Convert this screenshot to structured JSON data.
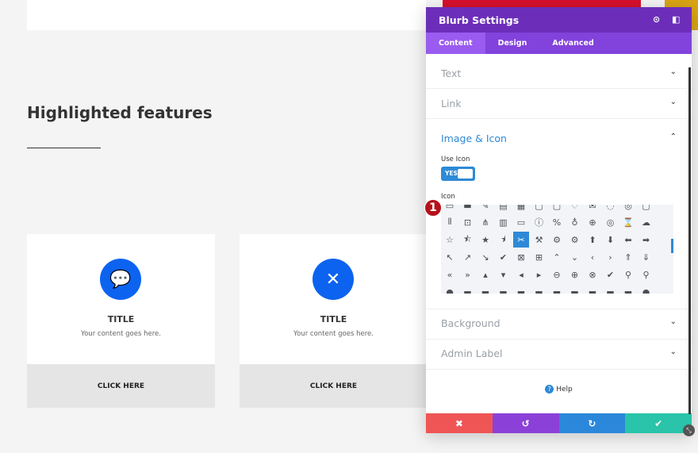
{
  "page": {
    "heading": "Highlighted features",
    "cards": [
      {
        "icon": "chat-bubble-icon",
        "glyph": "💬",
        "title": "TITLE",
        "description": "Your content goes here.",
        "button": "CLICK HERE"
      },
      {
        "icon": "tools-icon",
        "glyph": "✕",
        "title": "TITLE",
        "description": "Your content goes here.",
        "button": "CLICK HERE"
      }
    ]
  },
  "panel": {
    "title": "Blurb Settings",
    "tabs": [
      {
        "label": "Content",
        "active": true
      },
      {
        "label": "Design"
      },
      {
        "label": "Advanced"
      }
    ],
    "sections": {
      "text": "Text",
      "link": "Link",
      "image_icon": "Image & Icon",
      "background": "Background",
      "admin_label": "Admin Label"
    },
    "use_icon_label": "Use Icon",
    "use_icon_value": "YES",
    "icon_label": "Icon",
    "icon_grid": [
      [
        "▭",
        "▬",
        "✎",
        "▤",
        "▦",
        "▢",
        "▢",
        "♡",
        "✉",
        "◌",
        "◎",
        "▢"
      ],
      [
        "⫴",
        "⊡",
        "⋔",
        "▥",
        "▭",
        "ⓘ",
        "%",
        "♁",
        "⊕",
        "◎",
        "⌛",
        "☁"
      ],
      [
        "☆",
        "⯪",
        "★",
        "⯨",
        "✂",
        "⚒",
        "⚙",
        "⚙",
        "⬆",
        "⬇",
        "⬅",
        "➡"
      ],
      [
        "↖",
        "↗",
        "↘",
        "✔",
        "⊠",
        "⊞",
        "⌃",
        "⌄",
        "‹",
        "›",
        "⇑",
        "⇓"
      ],
      [
        "«",
        "»",
        "▴",
        "▾",
        "◂",
        "▸",
        "⊖",
        "⊕",
        "⊗",
        "✔",
        "⚲",
        "⚲"
      ],
      [
        "●",
        "▬",
        "▬",
        "▬",
        "▬",
        "▬",
        "▬",
        "▬",
        "▬",
        "▬",
        "▬",
        "●"
      ]
    ],
    "selected_icon": [
      2,
      4
    ],
    "help": "Help",
    "colors": {
      "header": "#6c2eb9",
      "tabs": "#8242dc",
      "accent": "#2e8ad6",
      "cancel": "#ef5555",
      "undo": "#8b41d8",
      "redo": "#2b87da",
      "save": "#29c4a9"
    }
  },
  "annotation_badge": "1"
}
